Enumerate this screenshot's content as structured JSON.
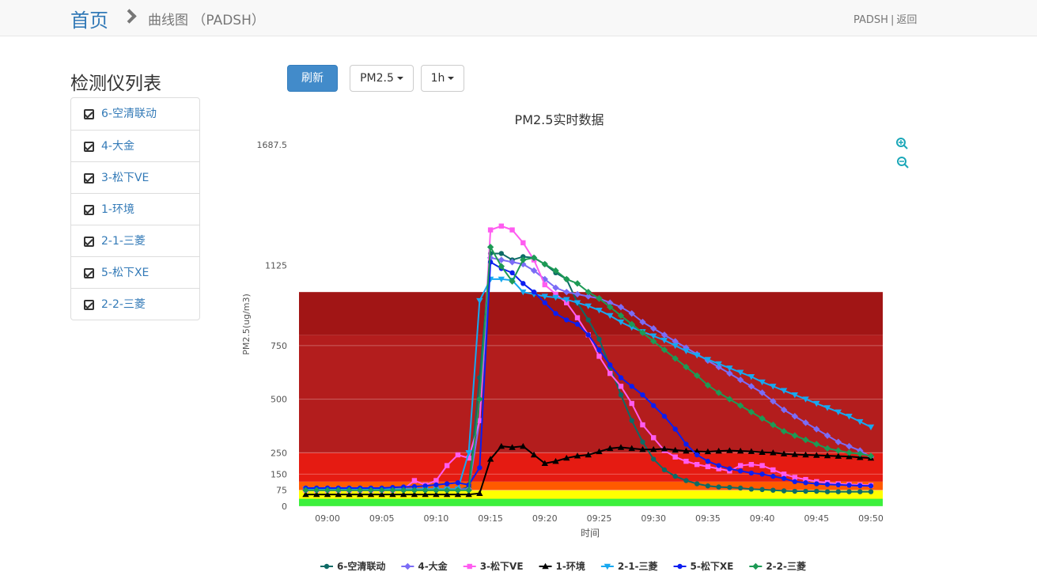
{
  "header": {
    "home": "首页",
    "page": "曲线图 （PADSH）",
    "user": "PADSH",
    "separator": "|",
    "back": "返回"
  },
  "sidebar": {
    "title": "检测仪列表",
    "items": [
      "6-空清联动",
      "4-大金",
      "3-松下VE",
      "1-环境",
      "2-1-三菱",
      "5-松下XE",
      "2-2-三菱"
    ]
  },
  "toolbar": {
    "refresh": "刷新",
    "pollutant": "PM2.5",
    "range": "1h"
  },
  "chart_data": {
    "type": "line",
    "title": "PM2.5实时数据",
    "y_label": "PM2.5(ug/m3)",
    "x_label": "时间",
    "categories": [
      null,
      null,
      "09:00",
      null,
      null,
      null,
      null,
      "09:05",
      null,
      null,
      null,
      null,
      "09:10",
      null,
      null,
      null,
      null,
      "09:15",
      null,
      null,
      null,
      null,
      "09:20",
      null,
      null,
      null,
      null,
      "09:25",
      null,
      null,
      null,
      null,
      "09:30",
      null,
      null,
      null,
      null,
      "09:35",
      null,
      null,
      null,
      null,
      "09:40",
      null,
      null,
      null,
      null,
      "09:45",
      null,
      null,
      null,
      null,
      "09:50"
    ],
    "ylim": [
      0,
      1687.5
    ],
    "yticks": [
      0,
      75,
      150,
      250,
      500,
      750,
      1125,
      1687.5
    ],
    "grid": true,
    "plot_bands": [
      {
        "from": 0,
        "to": 35,
        "color": "#3cf03c"
      },
      {
        "from": 35,
        "to": 75,
        "color": "#ffff00"
      },
      {
        "from": 75,
        "to": 115,
        "color": "#ff5a00"
      },
      {
        "from": 115,
        "to": 250,
        "color": "#e51b12"
      },
      {
        "from": 250,
        "to": 800,
        "color": "#b31d1d"
      },
      {
        "from": 800,
        "to": 1000,
        "color": "#a11515"
      }
    ],
    "legend": "bottom",
    "series": [
      {
        "name": "6-空清联动",
        "color": "#0d6b66",
        "marker": "circle",
        "values": [
          75,
          75,
          75,
          75,
          75,
          75,
          75,
          75,
          75,
          75,
          75,
          75,
          75,
          75,
          75,
          90,
          600,
          1180,
          1180,
          1150,
          1165,
          1160,
          1130,
          1090,
          1060,
          950,
          870,
          780,
          650,
          520,
          400,
          300,
          220,
          170,
          140,
          120,
          105,
          95,
          90,
          88,
          85,
          80,
          78,
          75,
          72,
          70,
          70,
          70,
          68,
          68,
          68,
          68,
          68
        ]
      },
      {
        "name": "4-大金",
        "color": "#7b6cf6",
        "marker": "diamond",
        "values": [
          80,
          80,
          80,
          80,
          80,
          80,
          80,
          80,
          80,
          80,
          80,
          80,
          80,
          80,
          80,
          80,
          400,
          1160,
          1150,
          1140,
          1130,
          1100,
          1060,
          1020,
          1000,
          990,
          980,
          970,
          950,
          930,
          900,
          860,
          830,
          800,
          770,
          740,
          710,
          680,
          650,
          620,
          590,
          560,
          530,
          490,
          450,
          420,
          390,
          360,
          330,
          300,
          280,
          260,
          230
        ]
      },
      {
        "name": "3-松下VE",
        "color": "#ff5cf0",
        "marker": "square",
        "values": [
          75,
          75,
          75,
          75,
          75,
          75,
          75,
          75,
          75,
          80,
          120,
          100,
          120,
          190,
          240,
          225,
          400,
          1290,
          1308,
          1290,
          1230,
          1150,
          1034,
          990,
          950,
          880,
          800,
          700,
          620,
          560,
          480,
          380,
          320,
          260,
          230,
          210,
          195,
          185,
          175,
          165,
          190,
          195,
          190,
          170,
          150,
          135,
          125,
          115,
          110,
          105,
          102,
          100,
          98
        ]
      },
      {
        "name": "1-环境",
        "color": "#000000",
        "marker": "triangle",
        "values": [
          55,
          55,
          55,
          55,
          55,
          55,
          55,
          55,
          55,
          55,
          55,
          55,
          55,
          55,
          55,
          55,
          60,
          220,
          280,
          275,
          280,
          240,
          200,
          210,
          225,
          235,
          240,
          255,
          270,
          275,
          270,
          265,
          265,
          268,
          262,
          258,
          256,
          255,
          258,
          260,
          258,
          256,
          252,
          250,
          245,
          242,
          240,
          238,
          236,
          234,
          232,
          228,
          225
        ]
      },
      {
        "name": "2-1-三菱",
        "color": "#17a8f0",
        "marker": "triangle-down",
        "values": [
          80,
          80,
          80,
          80,
          80,
          80,
          80,
          80,
          80,
          80,
          80,
          80,
          80,
          80,
          80,
          250,
          960,
          1060,
          1060,
          1055,
          1000,
          990,
          980,
          975,
          965,
          950,
          935,
          915,
          890,
          860,
          835,
          815,
          795,
          775,
          750,
          725,
          705,
          685,
          665,
          645,
          625,
          605,
          580,
          560,
          540,
          520,
          500,
          480,
          460,
          440,
          420,
          395,
          370
        ]
      },
      {
        "name": "5-松下XE",
        "color": "#0c1ef0",
        "marker": "circle",
        "values": [
          85,
          85,
          85,
          85,
          85,
          85,
          85,
          85,
          88,
          90,
          92,
          95,
          100,
          105,
          110,
          100,
          180,
          1140,
          1110,
          1090,
          1040,
          1000,
          950,
          900,
          870,
          850,
          800,
          730,
          660,
          600,
          560,
          520,
          470,
          420,
          360,
          290,
          240,
          210,
          190,
          175,
          165,
          155,
          150,
          140,
          130,
          115,
          110,
          105,
          102,
          100,
          98,
          96,
          95
        ]
      },
      {
        "name": "2-2-三菱",
        "color": "#1d9a55",
        "marker": "diamond",
        "values": [
          75,
          75,
          75,
          75,
          75,
          75,
          75,
          75,
          75,
          75,
          75,
          75,
          75,
          75,
          75,
          75,
          500,
          1210,
          1120,
          1050,
          1150,
          1160,
          1130,
          1100,
          1060,
          1040,
          1000,
          970,
          930,
          890,
          850,
          810,
          770,
          730,
          690,
          650,
          610,
          565,
          530,
          500,
          470,
          440,
          410,
          380,
          350,
          330,
          310,
          290,
          270,
          260,
          250,
          245,
          235
        ]
      }
    ]
  }
}
